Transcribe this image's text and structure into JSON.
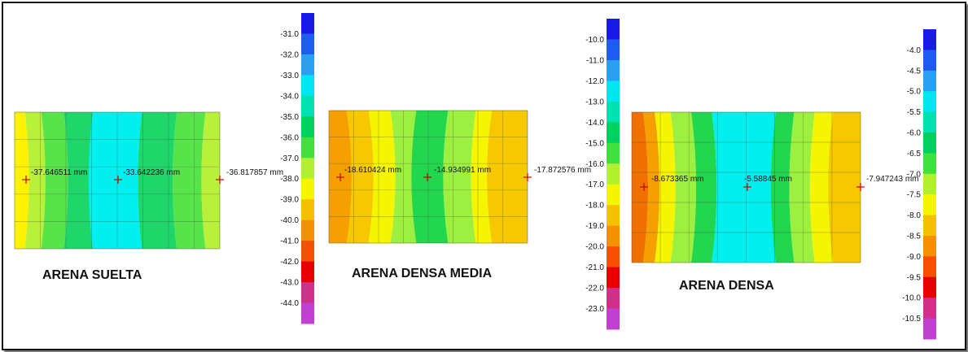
{
  "panels": [
    {
      "title": "ARENA SUELTA",
      "probes": [
        "-37.646511 mm",
        "-33.642236 mm",
        "-36.817857 mm"
      ],
      "colors": [
        "#fff200",
        "#b8f03a",
        "#57e34a",
        "#1ed66a",
        "#00f0f0",
        "#1ed66a",
        "#57e34a",
        "#b8f03a"
      ],
      "scale": {
        "ticks": [
          "-31.0",
          "-32.0",
          "-33.0",
          "-34.0",
          "-35.0",
          "-36.0",
          "-37.0",
          "-38.0",
          "-39.0",
          "-40.0",
          "-41.0",
          "-42.0",
          "-43.0",
          "-44.0"
        ],
        "colors": [
          "#1a1ae6",
          "#1e5cf0",
          "#2aa0f5",
          "#00e6f0",
          "#00e0b0",
          "#00d060",
          "#40e040",
          "#b0f030",
          "#f5f500",
          "#f5c000",
          "#f59000",
          "#f55000",
          "#e60000",
          "#d0308a",
          "#c040d0"
        ]
      }
    },
    {
      "title": "ARENA DENSA MEDIA",
      "probes": [
        "-18.610424 mm",
        "-14.934991 mm",
        "-17.872576 mm"
      ],
      "colors": [
        "#f5a000",
        "#f5c800",
        "#f5f500",
        "#9ef040",
        "#22d64e",
        "#9ef040",
        "#f5f500",
        "#f5c800"
      ],
      "scale": {
        "ticks": [
          "-10.0",
          "-11.0",
          "-12.0",
          "-13.0",
          "-14.0",
          "-15.0",
          "-16.0",
          "-17.0",
          "-18.0",
          "-19.0",
          "-20.0",
          "-21.0",
          "-22.0",
          "-23.0"
        ],
        "colors": [
          "#1a1ae6",
          "#1e5cf0",
          "#2aa0f5",
          "#00e6f0",
          "#00e0b0",
          "#00d060",
          "#40e040",
          "#b0f030",
          "#f5f500",
          "#f5c000",
          "#f59000",
          "#f55000",
          "#e60000",
          "#d0308a",
          "#c040d0"
        ]
      }
    },
    {
      "title": "ARENA DENSA",
      "probes": [
        "-8.673365 mm",
        "-5.58845 mm",
        "-7.947243 mm"
      ],
      "colors": [
        "#f07000",
        "#f5a000",
        "#f5f500",
        "#9ef040",
        "#22d64e",
        "#00f0f0",
        "#22d64e",
        "#9ef040",
        "#f5f500",
        "#f5c800"
      ],
      "scale": {
        "ticks": [
          "-4.0",
          "-4.5",
          "-5.0",
          "-5.5",
          "-6.0",
          "-6.5",
          "-7.0",
          "-7.5",
          "-8.0",
          "-8.5",
          "-9.0",
          "-9.5",
          "-10.0",
          "-10.5"
        ],
        "colors": [
          "#1a1ae6",
          "#1e5cf0",
          "#2aa0f5",
          "#00e6f0",
          "#00e0b0",
          "#00d060",
          "#40e040",
          "#b0f030",
          "#f5f500",
          "#f5c000",
          "#f59000",
          "#f55000",
          "#e60000",
          "#d0308a",
          "#c040d0"
        ]
      }
    }
  ]
}
